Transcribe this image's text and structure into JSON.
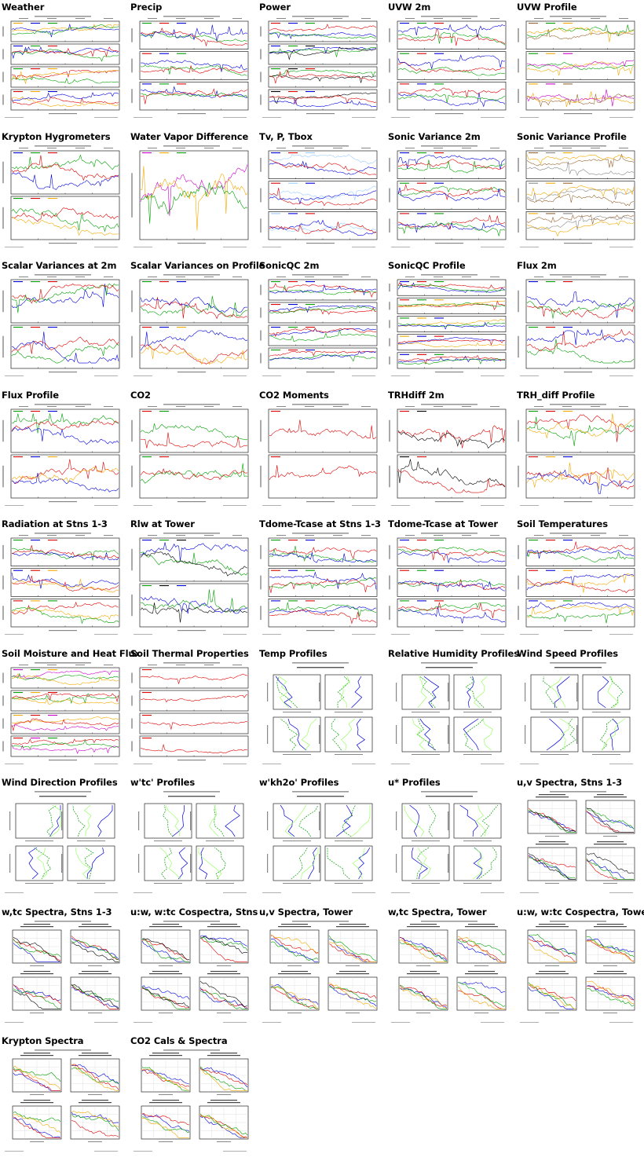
{
  "page": {
    "plots": [
      {
        "title": "Weather",
        "kind": "ts",
        "nPanels": 4,
        "colors": [
          "#f2a900",
          "#0000dd",
          "#00a000",
          "#dd0000"
        ]
      },
      {
        "title": "Precip",
        "kind": "ts",
        "nPanels": 3,
        "colors": [
          "#00a000",
          "#dd0000",
          "#0000dd"
        ]
      },
      {
        "title": "Power",
        "kind": "ts",
        "nPanels": 4,
        "colors": [
          "#dd0000",
          "#0000dd",
          "#00a000",
          "#000000"
        ]
      },
      {
        "title": "UVW 2m",
        "kind": "ts",
        "nPanels": 3,
        "colors": [
          "#0000dd",
          "#00a000",
          "#dd0000"
        ]
      },
      {
        "title": "UVW Profile",
        "kind": "ts",
        "nPanels": 3,
        "colors": [
          "#996633",
          "#00a000",
          "#f2a900",
          "#cc00cc"
        ]
      },
      {
        "title": "Krypton Hygrometers",
        "kind": "ts",
        "nPanels": 2,
        "colors": [
          "#0000dd",
          "#00a000",
          "#dd0000",
          "#f2a900"
        ]
      },
      {
        "title": "Water Vapor Difference",
        "kind": "ts",
        "nPanels": 1,
        "colors": [
          "#cc00cc",
          "#f2a900",
          "#00a000",
          "#0000dd"
        ]
      },
      {
        "title": "Tv, P, Tbox",
        "kind": "ts",
        "nPanels": 3,
        "colors": [
          "#0000dd",
          "#dd0000",
          "#99ccff"
        ]
      },
      {
        "title": "Sonic Variance 2m",
        "kind": "ts",
        "nPanels": 3,
        "colors": [
          "#0000dd",
          "#00a000",
          "#dd0000"
        ]
      },
      {
        "title": "Sonic Variance Profile",
        "kind": "ts",
        "nPanels": 3,
        "colors": [
          "#996633",
          "#888888",
          "#f2a900"
        ]
      },
      {
        "title": "Scalar Variances at 2m",
        "kind": "ts",
        "nPanels": 2,
        "colors": [
          "#0000dd",
          "#00a000",
          "#dd0000"
        ]
      },
      {
        "title": "Scalar Variances on Profile",
        "kind": "ts",
        "nPanels": 2,
        "colors": [
          "#00a000",
          "#dd0000",
          "#0000dd",
          "#f2a900"
        ]
      },
      {
        "title": "SonicQC 2m",
        "kind": "ts",
        "nPanels": 4,
        "colors": [
          "#00a000",
          "#dd0000",
          "#0000dd"
        ]
      },
      {
        "title": "SonicQC Profile",
        "kind": "ts",
        "nPanels": 5,
        "colors": [
          "#0000dd",
          "#dd0000",
          "#00a000",
          "#f2a900"
        ]
      },
      {
        "title": "Flux 2m",
        "kind": "ts",
        "nPanels": 2,
        "colors": [
          "#0000dd",
          "#00a000",
          "#dd0000"
        ]
      },
      {
        "title": "Flux Profile",
        "kind": "ts",
        "nPanels": 2,
        "colors": [
          "#00a000",
          "#dd0000",
          "#0000dd",
          "#f2a900"
        ]
      },
      {
        "title": "CO2",
        "kind": "ts",
        "nPanels": 2,
        "colors": [
          "#dd0000",
          "#00a000"
        ]
      },
      {
        "title": "CO2 Moments",
        "kind": "ts",
        "nPanels": 2,
        "colors": [
          "#dd0000"
        ]
      },
      {
        "title": "TRHdiff 2m",
        "kind": "ts",
        "nPanels": 2,
        "colors": [
          "#dd0000",
          "#000000"
        ]
      },
      {
        "title": "TRH_diff Profile",
        "kind": "ts",
        "nPanels": 2,
        "colors": [
          "#00a000",
          "#dd0000",
          "#f2a900",
          "#0000dd"
        ]
      },
      {
        "title": "Radiation at Stns 1-3",
        "kind": "ts",
        "nPanels": 3,
        "colors": [
          "#00a000",
          "#0000dd",
          "#dd0000",
          "#f2a900"
        ]
      },
      {
        "title": "Rlw at Tower",
        "kind": "ts",
        "nPanels": 2,
        "colors": [
          "#0000dd",
          "#00a000",
          "#000000"
        ]
      },
      {
        "title": "Tdome-Tcase at Stns 1-3",
        "kind": "ts",
        "nPanels": 3,
        "colors": [
          "#00a000",
          "#dd0000",
          "#0000dd"
        ]
      },
      {
        "title": "Tdome-Tcase at Tower",
        "kind": "ts",
        "nPanels": 3,
        "colors": [
          "#0000dd",
          "#dd0000",
          "#00a000"
        ]
      },
      {
        "title": "Soil Temperatures",
        "kind": "ts",
        "nPanels": 3,
        "colors": [
          "#00a000",
          "#dd0000",
          "#0000dd",
          "#f2a900"
        ]
      },
      {
        "title": "Soil Moisture and Heat Flux",
        "kind": "ts",
        "nPanels": 4,
        "colors": [
          "#cc00cc",
          "#00a000",
          "#f2a900",
          "#dd0000"
        ]
      },
      {
        "title": "Soil Thermal Properties",
        "kind": "ts",
        "nPanels": 4,
        "colors": [
          "#dd0000"
        ]
      },
      {
        "title": "Temp Profiles",
        "kind": "prof",
        "nPanels": 4,
        "colors": [
          "#0000dd",
          "#00a000",
          "#99ff66"
        ]
      },
      {
        "title": "Relative Humidity Profiles",
        "kind": "prof",
        "nPanels": 4,
        "colors": [
          "#0000dd",
          "#00a000",
          "#99ff66"
        ]
      },
      {
        "title": "Wind Speed Profiles",
        "kind": "prof",
        "nPanels": 4,
        "colors": [
          "#0000dd",
          "#00a000",
          "#99ff66"
        ]
      },
      {
        "title": "Wind Direction Profiles",
        "kind": "prof",
        "nPanels": 4,
        "colors": [
          "#0000dd",
          "#00a000",
          "#99ff66"
        ]
      },
      {
        "title": "w'tc' Profiles",
        "kind": "prof",
        "nPanels": 4,
        "colors": [
          "#0000dd",
          "#00a000",
          "#99ff66"
        ]
      },
      {
        "title": "w'kh2o' Profiles",
        "kind": "prof",
        "nPanels": 4,
        "colors": [
          "#0000dd",
          "#00a000",
          "#99ff66"
        ]
      },
      {
        "title": "u* Profiles",
        "kind": "prof",
        "nPanels": 4,
        "colors": [
          "#0000dd",
          "#00a000",
          "#99ff66"
        ]
      },
      {
        "title": "u,v Spectra, Stns 1-3",
        "kind": "spec",
        "nPanels": 4,
        "colors": [
          "#0000dd",
          "#dd0000",
          "#00a000",
          "#000000"
        ]
      },
      {
        "title": "w,tc Spectra, Stns 1-3",
        "kind": "spec",
        "nPanels": 4,
        "colors": [
          "#0000dd",
          "#dd0000",
          "#00a000",
          "#000000"
        ]
      },
      {
        "title": "u:w, w:tc Cospectra, Stns",
        "kind": "spec",
        "nPanels": 4,
        "colors": [
          "#0000dd",
          "#dd0000",
          "#00a000",
          "#000000"
        ]
      },
      {
        "title": "u,v Spectra, Tower",
        "kind": "spec",
        "nPanels": 4,
        "colors": [
          "#0000dd",
          "#dd0000",
          "#00a000",
          "#f2a900"
        ]
      },
      {
        "title": "w,tc Spectra, Tower",
        "kind": "spec",
        "nPanels": 4,
        "colors": [
          "#0000dd",
          "#dd0000",
          "#00a000",
          "#f2a900"
        ]
      },
      {
        "title": "u:w, w:tc Cospectra, Tower",
        "kind": "spec",
        "nPanels": 4,
        "colors": [
          "#0000dd",
          "#dd0000",
          "#00a000",
          "#f2a900"
        ]
      },
      {
        "title": "Krypton Spectra",
        "kind": "spec",
        "nPanels": 4,
        "colors": [
          "#0000dd",
          "#dd0000",
          "#00a000",
          "#f2a900"
        ]
      },
      {
        "title": "CO2 Cals & Spectra",
        "kind": "spec",
        "nPanels": 4,
        "colors": [
          "#0000dd",
          "#dd0000",
          "#00a000",
          "#f2a900"
        ]
      }
    ]
  }
}
